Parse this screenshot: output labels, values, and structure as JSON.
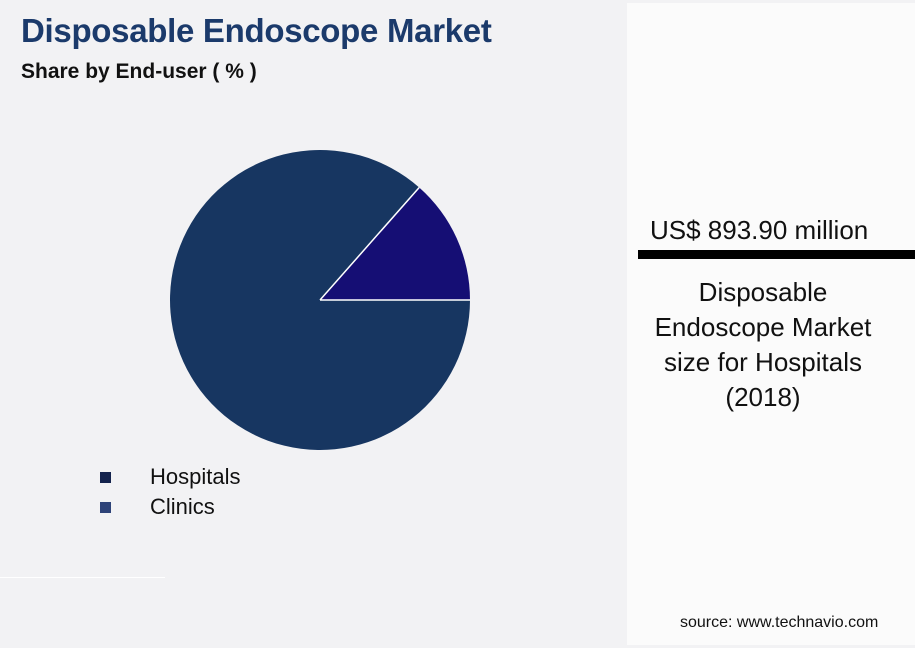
{
  "header": {
    "title": "Disposable Endoscope Market",
    "subtitle": "Share by End-user ( % )"
  },
  "legend": [
    {
      "label": "Hospitals",
      "color": "#14234d"
    },
    {
      "label": "Clinics",
      "color": "#2e4378"
    }
  ],
  "highlight": {
    "value": "US$ 893.90 million",
    "description": "Disposable Endoscope Market size for Hospitals (2018)"
  },
  "footer": {
    "source": "source: www.technavio.com"
  },
  "colors": {
    "title": "#1b3a6b",
    "hospitals_slice": "#173661",
    "clinics_slice": "#150e74",
    "background": "#f2f2f4"
  },
  "chart_data": {
    "type": "pie",
    "title": "Disposable Endoscope Market",
    "subtitle": "Share by End-user ( % )",
    "categories": [
      "Hospitals",
      "Clinics"
    ],
    "values": [
      86.5,
      13.5
    ],
    "slice_colors": [
      "#173661",
      "#150e74"
    ],
    "legend_position": "bottom-left",
    "annotation": "US$ 893.90 million — Disposable Endoscope Market size for Hospitals (2018)"
  }
}
